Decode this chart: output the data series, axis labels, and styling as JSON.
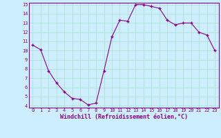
{
  "x": [
    0,
    1,
    2,
    3,
    4,
    5,
    6,
    7,
    8,
    9,
    10,
    11,
    12,
    13,
    14,
    15,
    16,
    17,
    18,
    19,
    20,
    21,
    22,
    23
  ],
  "y": [
    10.6,
    10.1,
    7.8,
    6.5,
    5.5,
    4.8,
    4.7,
    4.1,
    4.3,
    7.8,
    11.5,
    13.3,
    13.2,
    15.0,
    15.0,
    14.8,
    14.6,
    13.3,
    12.8,
    13.0,
    13.0,
    12.0,
    11.7,
    10.0
  ],
  "line_color": "#880088",
  "marker": "+",
  "marker_size": 3.0,
  "marker_lw": 1.0,
  "bg_color": "#cceeff",
  "grid_color": "#aaddcc",
  "xlabel": "Windchill (Refroidissement éolien,°C)",
  "xlabel_color": "#880088",
  "tick_color": "#880088",
  "spine_color": "#880088",
  "ylim": [
    4,
    15
  ],
  "yticks": [
    4,
    5,
    6,
    7,
    8,
    9,
    10,
    11,
    12,
    13,
    14,
    15
  ],
  "xticks": [
    0,
    1,
    2,
    3,
    4,
    5,
    6,
    7,
    8,
    9,
    10,
    11,
    12,
    13,
    14,
    15,
    16,
    17,
    18,
    19,
    20,
    21,
    22,
    23
  ],
  "figsize": [
    3.2,
    2.0
  ],
  "dpi": 100,
  "tick_fontsize": 5.0,
  "xlabel_fontsize": 6.0,
  "linewidth": 0.8
}
